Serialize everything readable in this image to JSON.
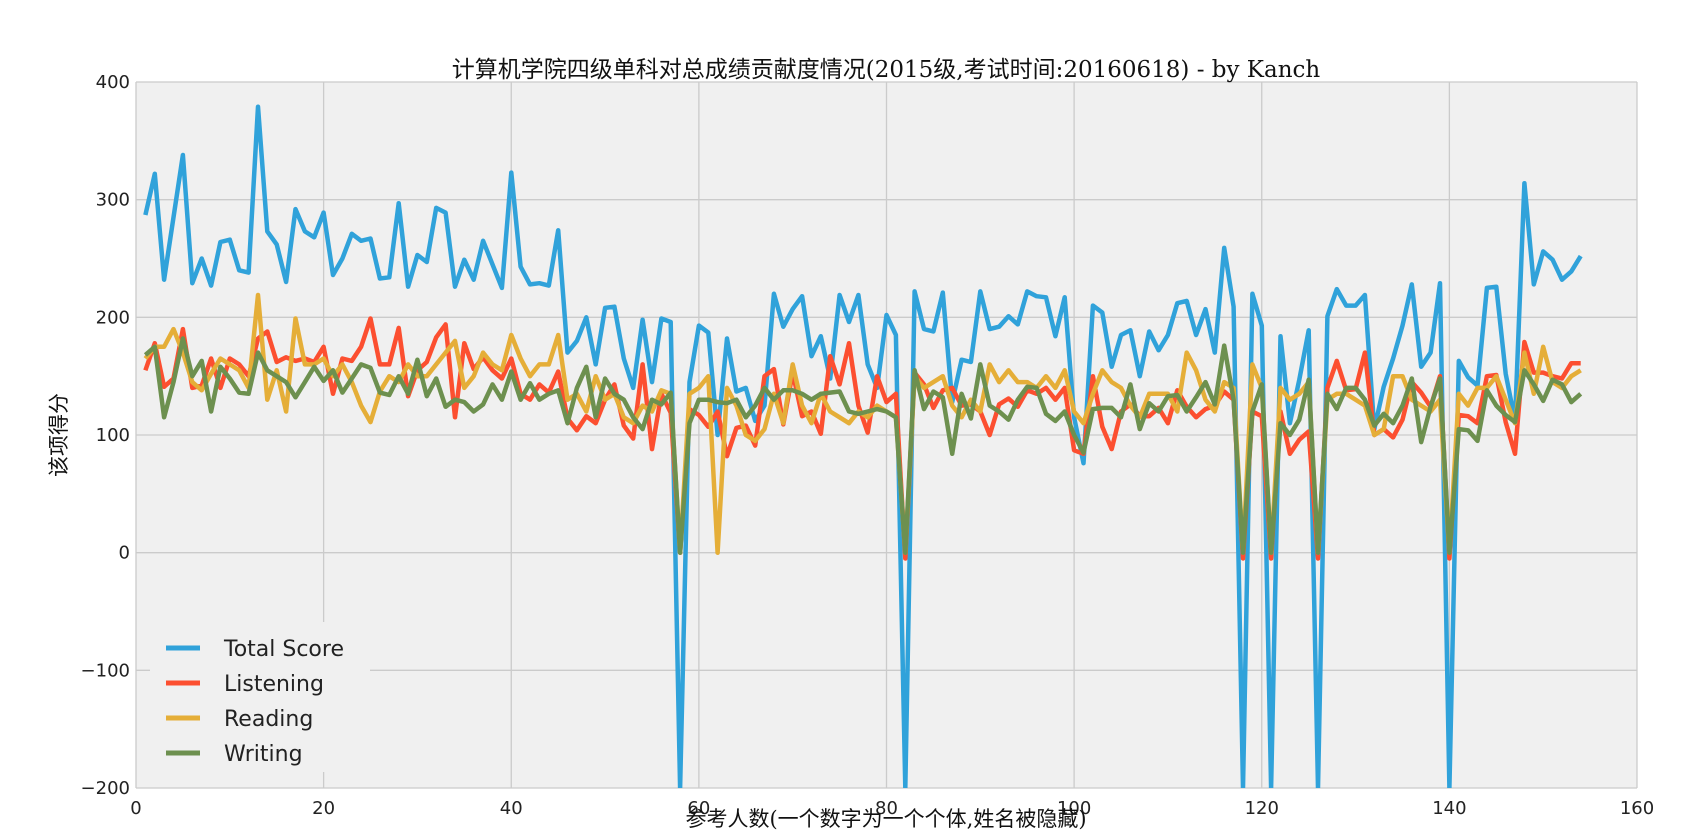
{
  "chart_data": {
    "type": "line",
    "title": "计算机学院四级单科对总成绩贡献度情况(2015级,考试时间:20160618) - by Kanch",
    "xlabel": "参考人数(一个数字为一个个体,姓名被隐藏)",
    "ylabel": "该项得分",
    "xlim": [
      0,
      160
    ],
    "ylim": [
      -200,
      400
    ],
    "xticks": [
      0,
      20,
      40,
      60,
      80,
      100,
      120,
      140,
      160
    ],
    "yticks": [
      -200,
      -100,
      0,
      100,
      200,
      300,
      400
    ],
    "xtick_labels": [
      "0",
      "20",
      "40",
      "60",
      "80",
      "100",
      "120",
      "140",
      "160"
    ],
    "ytick_labels": [
      "−200",
      "−100",
      "0",
      "100",
      "200",
      "300",
      "400"
    ],
    "grid": true,
    "legend_position": "lower-left",
    "x_start": 1,
    "series": [
      {
        "name": "Total Score",
        "color": "#30a2da",
        "values": [
          287,
          322,
          232,
          285,
          338,
          229,
          250,
          227,
          264,
          266,
          240,
          238,
          379,
          273,
          262,
          230,
          292,
          273,
          268,
          289,
          236,
          250,
          271,
          265,
          267,
          233,
          234,
          297,
          226,
          253,
          247,
          293,
          289,
          226,
          249,
          232,
          265,
          245,
          225,
          323,
          243,
          228,
          229,
          227,
          274,
          170,
          180,
          200,
          160,
          208,
          209,
          165,
          140,
          198,
          145,
          199,
          196,
          -200,
          145,
          193,
          187,
          100,
          182,
          137,
          140,
          112,
          125,
          220,
          192,
          207,
          218,
          167,
          184,
          148,
          219,
          196,
          219,
          160,
          140,
          202,
          185,
          -200,
          222,
          190,
          188,
          221,
          128,
          164,
          162,
          222,
          190,
          192,
          201,
          194,
          222,
          218,
          217,
          184,
          217,
          115,
          76,
          210,
          204,
          158,
          185,
          189,
          150,
          188,
          172,
          185,
          212,
          214,
          185,
          207,
          170,
          259,
          209,
          -200,
          220,
          193,
          -200,
          184,
          110,
          147,
          189,
          -200,
          201,
          224,
          210,
          210,
          219,
          105,
          141,
          165,
          193,
          228,
          158,
          170,
          229,
          -200,
          163,
          149,
          142,
          225,
          226,
          152,
          112,
          314,
          228,
          256,
          249,
          232,
          239,
          252
        ]
      },
      {
        "name": "Listening",
        "color": "#fc4f30",
        "values": [
          155,
          178,
          141,
          148,
          190,
          140,
          142,
          165,
          140,
          165,
          160,
          150,
          182,
          188,
          162,
          166,
          163,
          165,
          162,
          175,
          135,
          165,
          163,
          175,
          199,
          160,
          160,
          191,
          133,
          155,
          162,
          183,
          194,
          115,
          178,
          156,
          166,
          155,
          148,
          165,
          135,
          130,
          143,
          136,
          154,
          114,
          104,
          116,
          110,
          130,
          143,
          108,
          97,
          160,
          88,
          135,
          119,
          0,
          122,
          117,
          107,
          120,
          82,
          106,
          108,
          91,
          150,
          156,
          109,
          153,
          116,
          120,
          101,
          167,
          143,
          178,
          125,
          102,
          150,
          128,
          135,
          -5,
          153,
          143,
          123,
          138,
          140,
          125,
          126,
          120,
          100,
          126,
          131,
          124,
          138,
          135,
          140,
          130,
          140,
          87,
          84,
          150,
          107,
          88,
          120,
          126,
          116,
          116,
          123,
          110,
          138,
          124,
          115,
          122,
          125,
          137,
          130,
          -5,
          120,
          116,
          -5,
          120,
          84,
          96,
          103,
          -5,
          140,
          163,
          138,
          139,
          170,
          100,
          105,
          98,
          113,
          145,
          136,
          124,
          150,
          -5,
          117,
          116,
          110,
          150,
          151,
          111,
          84,
          179,
          153,
          153,
          150,
          148,
          161,
          161
        ]
      },
      {
        "name": "Reading",
        "color": "#e5ae38",
        "values": [
          165,
          175,
          175,
          190,
          170,
          145,
          138,
          152,
          165,
          160,
          155,
          140,
          219,
          130,
          155,
          120,
          199,
          160,
          160,
          165,
          150,
          160,
          145,
          125,
          111,
          137,
          150,
          145,
          160,
          150,
          150,
          160,
          170,
          180,
          140,
          150,
          170,
          160,
          155,
          185,
          165,
          150,
          160,
          160,
          185,
          130,
          135,
          120,
          150,
          130,
          135,
          115,
          110,
          125,
          120,
          138,
          135,
          0,
          135,
          140,
          150,
          0,
          140,
          125,
          100,
          95,
          105,
          135,
          110,
          160,
          125,
          110,
          135,
          120,
          115,
          110,
          120,
          115,
          125,
          120,
          115,
          0,
          150,
          140,
          145,
          150,
          125,
          115,
          130,
          120,
          160,
          145,
          155,
          145,
          145,
          140,
          150,
          140,
          155,
          120,
          110,
          135,
          155,
          145,
          140,
          125,
          115,
          135,
          135,
          135,
          120,
          170,
          155,
          130,
          120,
          145,
          140,
          0,
          160,
          140,
          0,
          140,
          130,
          135,
          145,
          0,
          130,
          135,
          135,
          130,
          125,
          100,
          105,
          150,
          150,
          130,
          125,
          120,
          130,
          0,
          135,
          125,
          140,
          140,
          150,
          130,
          110,
          170,
          135,
          175,
          145,
          140,
          150,
          155
        ]
      },
      {
        "name": "Writing",
        "color": "#6d904f",
        "values": [
          168,
          175,
          115,
          145,
          182,
          150,
          163,
          120,
          158,
          148,
          136,
          135,
          170,
          155,
          150,
          145,
          132,
          145,
          158,
          146,
          155,
          136,
          148,
          160,
          157,
          136,
          134,
          150,
          135,
          164,
          133,
          148,
          124,
          130,
          128,
          120,
          126,
          143,
          130,
          154,
          130,
          144,
          130,
          135,
          138,
          110,
          140,
          158,
          115,
          148,
          135,
          130,
          115,
          105,
          130,
          126,
          136,
          0,
          110,
          130,
          130,
          128,
          127,
          130,
          115,
          125,
          140,
          130,
          138,
          138,
          135,
          130,
          135,
          136,
          137,
          120,
          118,
          120,
          122,
          120,
          115,
          0,
          155,
          122,
          137,
          132,
          84,
          135,
          114,
          160,
          125,
          120,
          113,
          130,
          141,
          140,
          118,
          112,
          120,
          100,
          85,
          122,
          123,
          123,
          115,
          143,
          105,
          127,
          120,
          133,
          134,
          120,
          132,
          145,
          126,
          176,
          130,
          0,
          120,
          143,
          0,
          110,
          100,
          113,
          147,
          0,
          135,
          122,
          140,
          140,
          130,
          108,
          118,
          110,
          125,
          148,
          94,
          124,
          148,
          0,
          105,
          104,
          95,
          138,
          125,
          117,
          111,
          155,
          143,
          129,
          147,
          143,
          128,
          135
        ]
      }
    ]
  }
}
